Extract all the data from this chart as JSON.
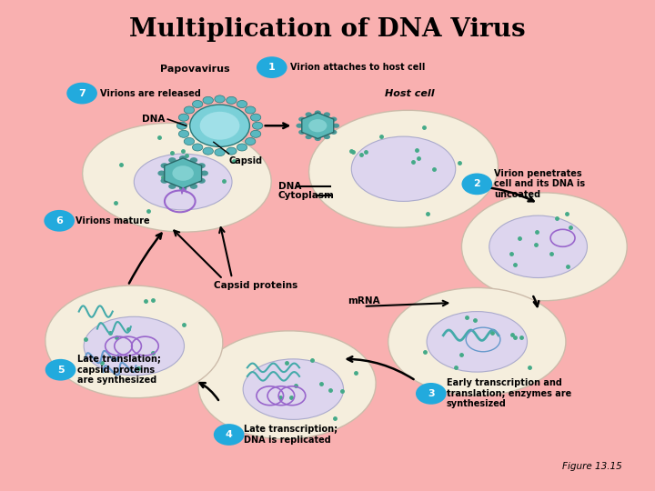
{
  "title": "Multiplication of DNA Virus",
  "subtitle": "Papovavirus",
  "background_color": "#f9b0b0",
  "panel_color": "#ffffff",
  "figure_label": "Figure 13.15",
  "cell_fill": "#f5eedd",
  "nucleus_fill": "#ddd5ee",
  "circle_color": "#22aadd",
  "step_labels": [
    "Virion attaches to host cell",
    "Virion penetrates\ncell and its DNA is\nuncoated",
    "Early transcription and\ntranslation; enzymes are\nsynthesized",
    "Late transcription;\nDNA is replicated",
    "Late translation;\ncapsid proteins\nare synthesized",
    "Virions mature",
    "Virions are released"
  ]
}
